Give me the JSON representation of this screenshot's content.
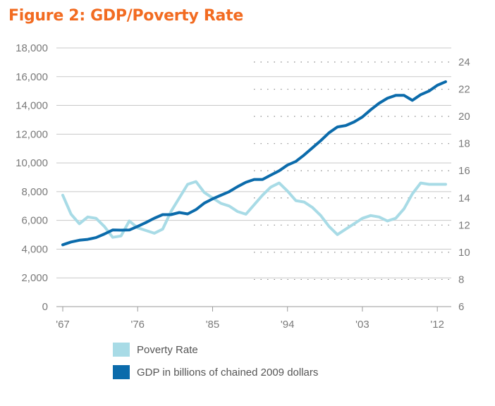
{
  "title": "Figure 2: GDP/Poverty Rate",
  "colors": {
    "title": "#f26b21",
    "poverty": "#a8dbe6",
    "gdp": "#0b6bab"
  },
  "chart_data": {
    "type": "line",
    "title": "Figure 2: GDP/Poverty Rate",
    "grid": true,
    "legend_position": "bottom-left",
    "x_range": [
      1967,
      2013
    ],
    "x_tick_labels": [
      "'67",
      "'76",
      "'85",
      "'94",
      "'03",
      "'12"
    ],
    "x_tick_values": [
      1967,
      1976,
      1985,
      1994,
      2003,
      2012
    ],
    "y_left": {
      "range": [
        0,
        18000
      ],
      "tick_labels": [
        "0",
        "2,000",
        "4,000",
        "6,000",
        "8,000",
        "10,000",
        "12,000",
        "14,000",
        "16,000",
        "18,000"
      ]
    },
    "y_right": {
      "range": [
        6,
        24
      ],
      "tick_labels": [
        "6",
        "8",
        "10",
        "12",
        "14",
        "16",
        "18",
        "20",
        "22",
        "24"
      ]
    },
    "series": [
      {
        "name": "Poverty Rate",
        "axis": "right",
        "color": "#a8dbe6",
        "x": [
          1967,
          1968,
          1969,
          1970,
          1971,
          1972,
          1973,
          1974,
          1975,
          1976,
          1977,
          1978,
          1979,
          1980,
          1981,
          1982,
          1983,
          1984,
          1985,
          1986,
          1987,
          1988,
          1989,
          1990,
          1991,
          1992,
          1993,
          1994,
          1995,
          1996,
          1997,
          1998,
          1999,
          2000,
          2001,
          2002,
          2003,
          2004,
          2005,
          2006,
          2007,
          2008,
          2009,
          2010,
          2011,
          2012,
          2013
        ],
        "values": [
          14.2,
          12.8,
          12.1,
          12.6,
          12.5,
          11.9,
          11.1,
          11.2,
          12.3,
          11.8,
          11.6,
          11.4,
          11.7,
          13.0,
          14.0,
          15.0,
          15.2,
          14.4,
          14.0,
          13.6,
          13.4,
          13.0,
          12.8,
          13.5,
          14.2,
          14.8,
          15.1,
          14.5,
          13.8,
          13.7,
          13.3,
          12.7,
          11.9,
          11.3,
          11.7,
          12.1,
          12.5,
          12.7,
          12.6,
          12.3,
          12.5,
          13.2,
          14.3,
          15.1,
          15.0,
          15.0,
          15.0
        ]
      },
      {
        "name": "GDP in billions of chained 2009 dollars",
        "axis": "left",
        "color": "#0b6bab",
        "x": [
          1967,
          1968,
          1969,
          1970,
          1971,
          1972,
          1973,
          1974,
          1975,
          1976,
          1977,
          1978,
          1979,
          1980,
          1981,
          1982,
          1983,
          1984,
          1985,
          1986,
          1987,
          1988,
          1989,
          1990,
          1991,
          1992,
          1993,
          1994,
          1995,
          1996,
          1997,
          1998,
          1999,
          2000,
          2001,
          2002,
          2003,
          2004,
          2005,
          2006,
          2007,
          2008,
          2009,
          2010,
          2011,
          2012,
          2013
        ],
        "values": [
          4300,
          4500,
          4620,
          4680,
          4800,
          5050,
          5330,
          5320,
          5330,
          5580,
          5850,
          6150,
          6400,
          6400,
          6550,
          6450,
          6750,
          7200,
          7500,
          7750,
          8000,
          8350,
          8650,
          8850,
          8850,
          9150,
          9450,
          9850,
          10100,
          10550,
          11050,
          11550,
          12100,
          12500,
          12600,
          12850,
          13200,
          13700,
          14150,
          14500,
          14700,
          14700,
          14350,
          14750,
          15000,
          15400,
          15650
        ]
      }
    ]
  },
  "legend": [
    {
      "label": "Poverty Rate",
      "color": "#a8dbe6"
    },
    {
      "label": "GDP in billions of chained 2009 dollars",
      "color": "#0b6bab"
    }
  ]
}
